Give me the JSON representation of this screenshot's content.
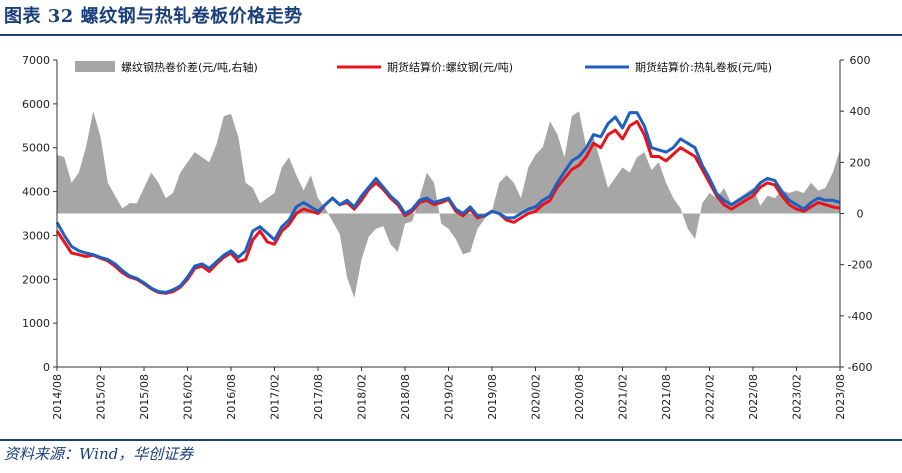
{
  "title": "图表 32  螺纹钢与热轧卷板价格走势",
  "source": "资料来源：Wind，华创证券",
  "chart_data": {
    "type": "line",
    "x_ticks": [
      "2014/08",
      "2015/02",
      "2015/08",
      "2016/02",
      "2016/08",
      "2017/02",
      "2017/08",
      "2018/02",
      "2018/08",
      "2019/02",
      "2019/08",
      "2020/02",
      "2020/08",
      "2021/02",
      "2021/08",
      "2022/02",
      "2022/08",
      "2023/02",
      "2023/08"
    ],
    "left_axis": {
      "ylim": [
        0,
        7000
      ],
      "ticks": [
        0,
        1000,
        2000,
        3000,
        4000,
        5000,
        6000,
        7000
      ]
    },
    "right_axis": {
      "ylim": [
        -600,
        600
      ],
      "ticks": [
        -600,
        -400,
        -200,
        0,
        200,
        400,
        600
      ]
    },
    "x_months": [
      0,
      1,
      2,
      3,
      4,
      5,
      6,
      7,
      8,
      9,
      10,
      11,
      12,
      13,
      14,
      15,
      16,
      17,
      18,
      19,
      20,
      21,
      22,
      23,
      24,
      25,
      26,
      27,
      28,
      29,
      30,
      31,
      32,
      33,
      34,
      35,
      36,
      37,
      38,
      39,
      40,
      41,
      42,
      43,
      44,
      45,
      46,
      47,
      48,
      49,
      50,
      51,
      52,
      53,
      54,
      55,
      56,
      57,
      58,
      59,
      60,
      61,
      62,
      63,
      64,
      65,
      66,
      67,
      68,
      69,
      70,
      71,
      72,
      73,
      74,
      75,
      76,
      77,
      78,
      79,
      80,
      81,
      82,
      83,
      84,
      85,
      86,
      87,
      88,
      89,
      90,
      91,
      92,
      93,
      94,
      95,
      96,
      97,
      98,
      99,
      100,
      101,
      102,
      103,
      104,
      105,
      106,
      107,
      108
    ],
    "series": [
      {
        "name": "螺纹钢热卷价差(元/吨,右轴)",
        "axis": "right",
        "style": "area",
        "color": "#a6a6a6",
        "values": [
          230,
          220,
          120,
          160,
          260,
          400,
          300,
          120,
          70,
          20,
          40,
          40,
          100,
          160,
          120,
          60,
          80,
          160,
          200,
          240,
          220,
          200,
          270,
          380,
          390,
          300,
          120,
          100,
          40,
          60,
          80,
          180,
          220,
          150,
          90,
          150,
          60,
          20,
          -30,
          -80,
          -250,
          -330,
          -180,
          -90,
          -60,
          -50,
          -120,
          -150,
          -40,
          -30,
          60,
          160,
          120,
          -40,
          -60,
          -100,
          -160,
          -150,
          -60,
          -20,
          10,
          120,
          150,
          120,
          60,
          180,
          230,
          260,
          360,
          310,
          220,
          380,
          400,
          260,
          300,
          200,
          100,
          140,
          180,
          160,
          220,
          240,
          170,
          200,
          120,
          60,
          20,
          -60,
          -100,
          40,
          80,
          60,
          100,
          40,
          60,
          80,
          100,
          30,
          70,
          60,
          90,
          80,
          90,
          80,
          120,
          90,
          100,
          160,
          250
        ]
      },
      {
        "name": "期货结算价:螺纹钢(元/吨)",
        "axis": "left",
        "color": "#e8141c",
        "values": [
          3100,
          2850,
          2600,
          2560,
          2520,
          2550,
          2480,
          2420,
          2300,
          2150,
          2050,
          2000,
          1900,
          1780,
          1700,
          1680,
          1720,
          1820,
          2000,
          2250,
          2300,
          2180,
          2350,
          2500,
          2600,
          2400,
          2450,
          2900,
          3100,
          2850,
          2800,
          3100,
          3250,
          3500,
          3600,
          3550,
          3500,
          3700,
          3850,
          3700,
          3750,
          3600,
          3800,
          4050,
          4200,
          4050,
          3850,
          3700,
          3450,
          3550,
          3750,
          3800,
          3700,
          3750,
          3820,
          3550,
          3450,
          3600,
          3400,
          3450,
          3550,
          3500,
          3350,
          3300,
          3400,
          3500,
          3550,
          3700,
          3800,
          4100,
          4300,
          4500,
          4600,
          4800,
          5100,
          5000,
          5300,
          5400,
          5200,
          5500,
          5600,
          5300,
          4800,
          4800,
          4700,
          4850,
          5000,
          4900,
          4800,
          4500,
          4200,
          3900,
          3700,
          3600,
          3700,
          3800,
          3900,
          4100,
          4200,
          4150,
          3900,
          3700,
          3600,
          3550,
          3650,
          3750,
          3700,
          3650,
          3620
        ]
      },
      {
        "name": "期货结算价:热轧卷板(元/吨)",
        "axis": "left",
        "color": "#1f5fbf",
        "values": [
          3300,
          3000,
          2750,
          2650,
          2600,
          2560,
          2500,
          2450,
          2350,
          2200,
          2080,
          2020,
          1920,
          1800,
          1720,
          1700,
          1760,
          1850,
          2050,
          2300,
          2350,
          2250,
          2400,
          2550,
          2650,
          2500,
          2650,
          3100,
          3200,
          3050,
          2900,
          3200,
          3350,
          3650,
          3750,
          3650,
          3550,
          3700,
          3850,
          3700,
          3800,
          3650,
          3900,
          4100,
          4300,
          4100,
          3900,
          3750,
          3500,
          3600,
          3800,
          3850,
          3750,
          3800,
          3850,
          3600,
          3500,
          3650,
          3450,
          3450,
          3550,
          3500,
          3400,
          3400,
          3500,
          3600,
          3650,
          3800,
          3900,
          4200,
          4450,
          4700,
          4800,
          5000,
          5300,
          5250,
          5550,
          5700,
          5450,
          5800,
          5800,
          5500,
          5000,
          4950,
          4900,
          5000,
          5200,
          5100,
          5000,
          4600,
          4300,
          3950,
          3800,
          3700,
          3800,
          3900,
          4000,
          4200,
          4300,
          4250,
          4000,
          3800,
          3700,
          3600,
          3750,
          3850,
          3800,
          3800,
          3750
        ]
      }
    ]
  }
}
